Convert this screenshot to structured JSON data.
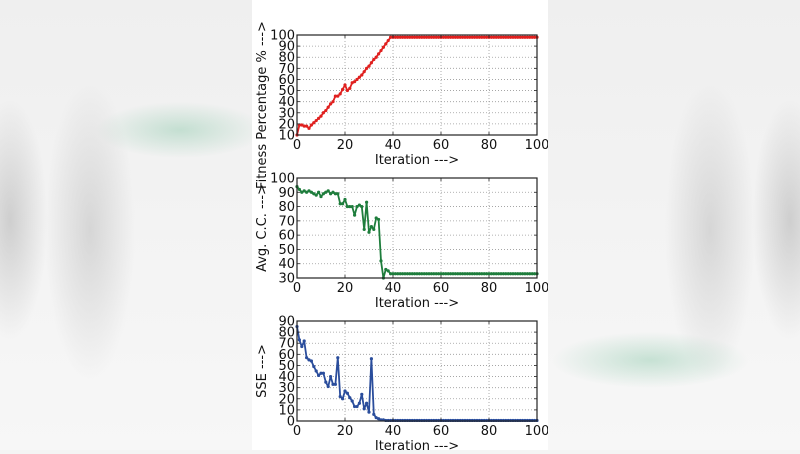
{
  "chart_data": [
    {
      "type": "line",
      "title": "",
      "xlabel": "Iteration --->",
      "ylabel": "Fitness Percentage % --->",
      "xlim": [
        0,
        100
      ],
      "ylim": [
        10,
        100
      ],
      "xticks": [
        0,
        20,
        40,
        60,
        80,
        100
      ],
      "yticks": [
        10,
        20,
        30,
        40,
        50,
        60,
        70,
        80,
        90,
        100
      ],
      "grid": true,
      "color": "#e0201f",
      "x": [
        0,
        1,
        2,
        3,
        4,
        5,
        6,
        7,
        8,
        9,
        10,
        11,
        12,
        13,
        14,
        15,
        16,
        17,
        18,
        19,
        20,
        21,
        22,
        23,
        24,
        25,
        26,
        27,
        28,
        29,
        30,
        31,
        32,
        33,
        34,
        35,
        36,
        37,
        38,
        39,
        40,
        50,
        60,
        70,
        80,
        90,
        100
      ],
      "values": [
        10,
        19,
        19,
        18,
        18,
        16,
        19,
        21,
        23,
        25,
        27,
        30,
        32,
        35,
        38,
        40,
        45,
        45,
        47,
        51,
        55,
        50,
        52,
        57,
        58,
        60,
        62,
        64,
        67,
        70,
        72,
        75,
        78,
        80,
        83,
        86,
        89,
        92,
        95,
        98,
        98,
        98,
        98,
        98,
        98,
        98,
        98
      ]
    },
    {
      "type": "line",
      "title": "",
      "xlabel": "Iteration --->",
      "ylabel": "Avg. C.C. --->",
      "xlim": [
        0,
        100
      ],
      "ylim": [
        30,
        100
      ],
      "xticks": [
        0,
        20,
        40,
        60,
        80,
        100
      ],
      "yticks": [
        30,
        40,
        50,
        60,
        70,
        80,
        90,
        100
      ],
      "grid": true,
      "color": "#1e7d3c",
      "x": [
        0,
        1,
        2,
        3,
        4,
        5,
        6,
        7,
        8,
        9,
        10,
        11,
        12,
        13,
        14,
        15,
        16,
        17,
        18,
        19,
        20,
        21,
        22,
        23,
        24,
        25,
        26,
        27,
        28,
        29,
        30,
        31,
        32,
        33,
        34,
        35,
        36,
        37,
        38,
        39,
        40,
        50,
        60,
        70,
        80,
        90,
        100
      ],
      "values": [
        94,
        92,
        90,
        91,
        90,
        91,
        90,
        89,
        88,
        90,
        87,
        89,
        90,
        91,
        89,
        90,
        89,
        89,
        82,
        82,
        85,
        80,
        80,
        80,
        74,
        80,
        81,
        80,
        64,
        83,
        62,
        66,
        64,
        72,
        71,
        42,
        30,
        36,
        35,
        33,
        33,
        33,
        33,
        33,
        33,
        33,
        33
      ]
    },
    {
      "type": "line",
      "title": "",
      "xlabel": "Iteration --->",
      "ylabel": "SSE --->",
      "xlim": [
        0,
        100
      ],
      "ylim": [
        0,
        90
      ],
      "xticks": [
        0,
        20,
        40,
        60,
        80,
        100
      ],
      "yticks": [
        0,
        10,
        20,
        30,
        40,
        50,
        60,
        70,
        80,
        90
      ],
      "grid": true,
      "color": "#2a4d9c",
      "x": [
        0,
        1,
        2,
        3,
        4,
        5,
        6,
        7,
        8,
        9,
        10,
        11,
        12,
        13,
        14,
        15,
        16,
        17,
        18,
        19,
        20,
        21,
        22,
        23,
        24,
        25,
        26,
        27,
        28,
        29,
        30,
        31,
        32,
        33,
        34,
        35,
        36,
        37,
        38,
        39,
        40,
        50,
        60,
        70,
        80,
        90,
        100
      ],
      "values": [
        85,
        73,
        67,
        72,
        57,
        55,
        54,
        49,
        45,
        41,
        43,
        43,
        35,
        31,
        40,
        33,
        33,
        57,
        22,
        20,
        27,
        25,
        21,
        18,
        13,
        13,
        16,
        24,
        11,
        16,
        8,
        56,
        6,
        3,
        2,
        1,
        1,
        0.5,
        0.5,
        0.5,
        0.5,
        0.5,
        0.5,
        0.5,
        0.5,
        0.5,
        0.5
      ]
    }
  ]
}
